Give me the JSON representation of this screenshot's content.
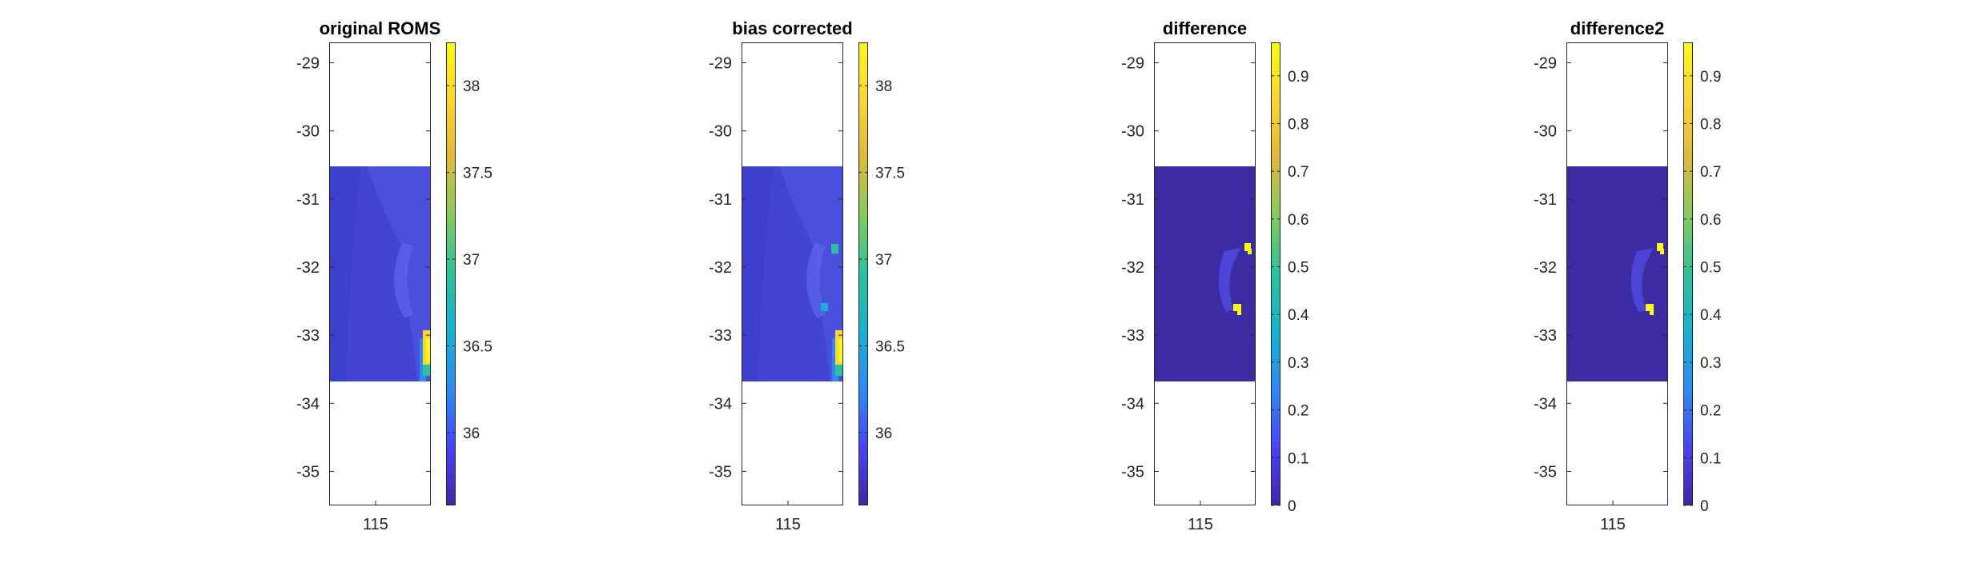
{
  "figure": {
    "colormap": [
      "#3e26a8",
      "#4743f8",
      "#2d8af5",
      "#15b1d4",
      "#2ac29b",
      "#81cc5e",
      "#e0b93a",
      "#fdd52d",
      "#f9fb0e"
    ],
    "ocean_color_salinity": "#4245d4",
    "ocean_color_difference": "#3d2ba4",
    "bay_color_difference": "#4a45d6",
    "anomaly_color": "#f9fb0e"
  },
  "chart_data": [
    {
      "type": "heatmap",
      "title": "original ROMS",
      "xticks": [
        115
      ],
      "yticks": [
        -29,
        -30,
        -31,
        -32,
        -33,
        -34,
        -35
      ],
      "ylim": [
        -35.5,
        -28.7
      ],
      "data_lat_range": [
        -33.7,
        -30.5
      ],
      "colorbar": {
        "min": 35.58,
        "max": 38.25,
        "ticks": [
          "36",
          "36.5",
          "37",
          "37.5",
          "38"
        ],
        "tick_values": [
          36,
          36.5,
          37,
          37.5,
          38
        ]
      }
    },
    {
      "type": "heatmap",
      "title": "bias corrected",
      "xticks": [
        115
      ],
      "yticks": [
        -29,
        -30,
        -31,
        -32,
        -33,
        -34,
        -35
      ],
      "ylim": [
        -35.5,
        -28.7
      ],
      "data_lat_range": [
        -33.7,
        -30.5
      ],
      "colorbar": {
        "min": 35.58,
        "max": 38.25,
        "ticks": [
          "36",
          "36.5",
          "37",
          "37.5",
          "38"
        ],
        "tick_values": [
          36,
          36.5,
          37,
          37.5,
          38
        ]
      }
    },
    {
      "type": "heatmap",
      "title": "difference",
      "xticks": [
        115
      ],
      "yticks": [
        -29,
        -30,
        -31,
        -32,
        -33,
        -34,
        -35
      ],
      "ylim": [
        -35.5,
        -28.7
      ],
      "data_lat_range": [
        -33.7,
        -30.5
      ],
      "colorbar": {
        "min": 0,
        "max": 0.97,
        "ticks": [
          "0",
          "0.1",
          "0.2",
          "0.3",
          "0.4",
          "0.5",
          "0.6",
          "0.7",
          "0.8",
          "0.9"
        ],
        "tick_values": [
          0,
          0.1,
          0.2,
          0.3,
          0.4,
          0.5,
          0.6,
          0.7,
          0.8,
          0.9
        ]
      }
    },
    {
      "type": "heatmap",
      "title": "difference2",
      "xticks": [
        115
      ],
      "yticks": [
        -29,
        -30,
        -31,
        -32,
        -33,
        -34,
        -35
      ],
      "ylim": [
        -35.5,
        -28.7
      ],
      "data_lat_range": [
        -33.7,
        -30.5
      ],
      "colorbar": {
        "min": 0,
        "max": 0.97,
        "ticks": [
          "0",
          "0.1",
          "0.2",
          "0.3",
          "0.4",
          "0.5",
          "0.6",
          "0.7",
          "0.8",
          "0.9"
        ],
        "tick_values": [
          0,
          0.1,
          0.2,
          0.3,
          0.4,
          0.5,
          0.6,
          0.7,
          0.8,
          0.9
        ]
      }
    }
  ]
}
